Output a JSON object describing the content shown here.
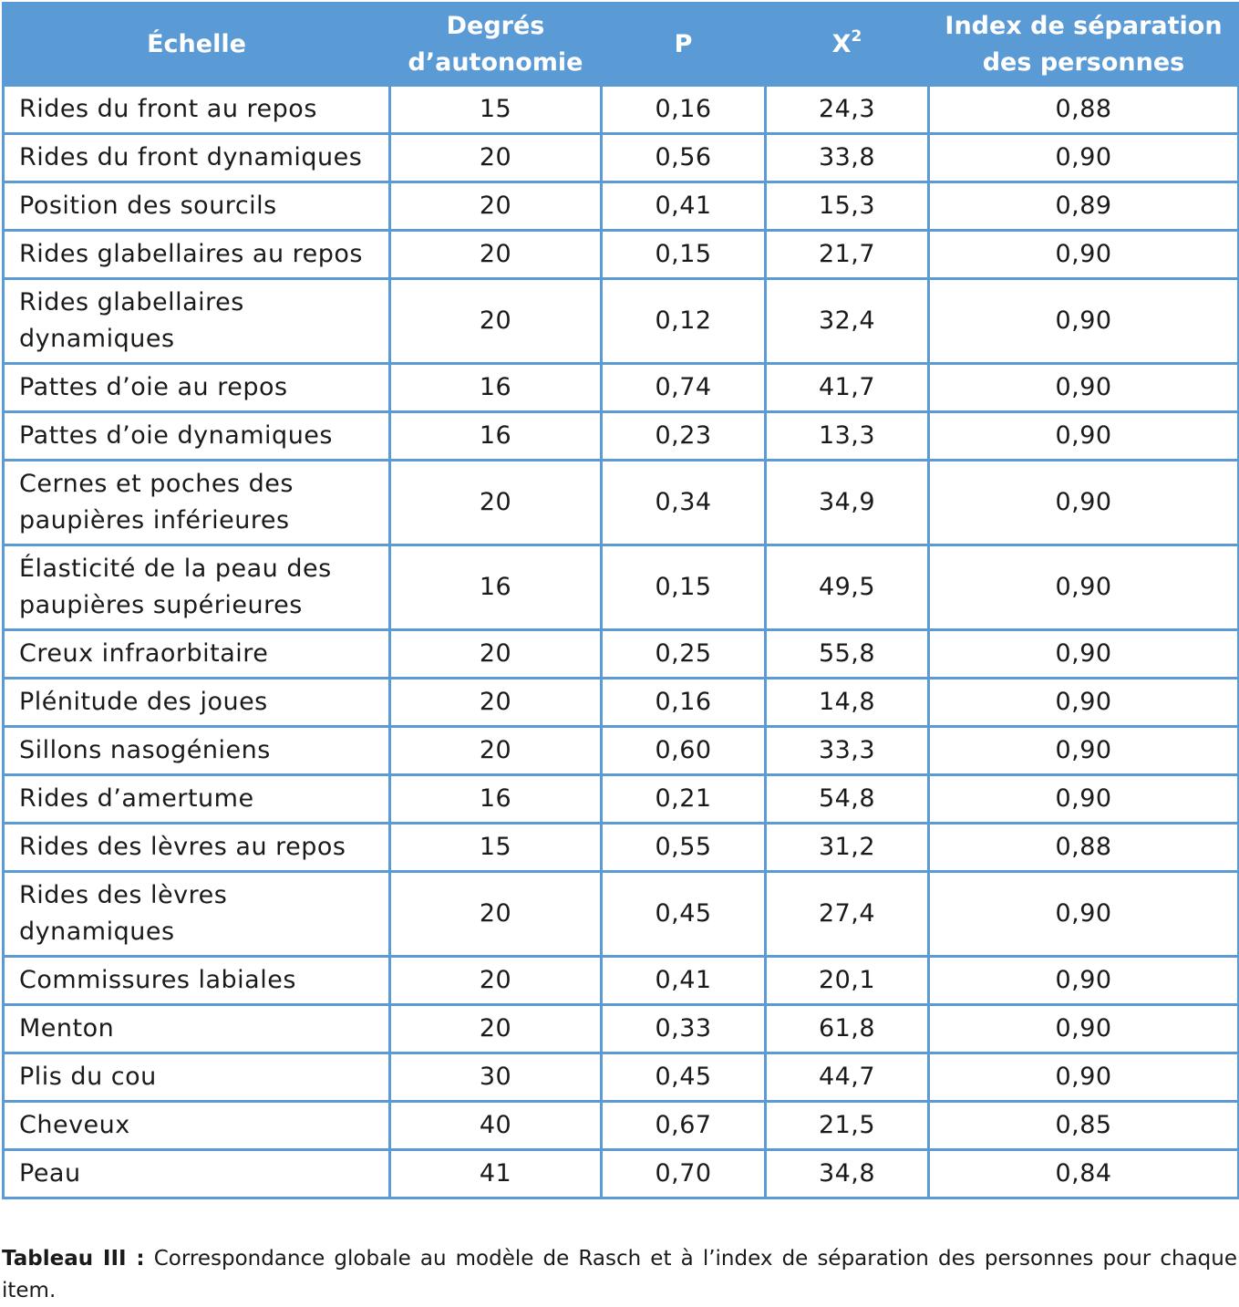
{
  "table": {
    "headers": {
      "scale": "Échelle",
      "degrees_line1": "Degrés",
      "degrees_line2": "d’autonomie",
      "p": "P",
      "x2_base": "X",
      "x2_sup": "2",
      "index_line1": "Index de séparation",
      "index_line2": "des personnes"
    },
    "rows": [
      {
        "scale": "Rides du front au repos",
        "df": "15",
        "p": "0,16",
        "x2": "24,3",
        "index": "0,88"
      },
      {
        "scale": "Rides du front dynamiques",
        "df": "20",
        "p": "0,56",
        "x2": "33,8",
        "index": "0,90"
      },
      {
        "scale": "Position des sourcils",
        "df": "20",
        "p": "0,41",
        "x2": "15,3",
        "index": "0,89"
      },
      {
        "scale": "Rides glabellaires au repos",
        "df": "20",
        "p": "0,15",
        "x2": "21,7",
        "index": "0,90"
      },
      {
        "scale": "Rides glabellaires dynamiques",
        "df": "20",
        "p": "0,12",
        "x2": "32,4",
        "index": "0,90"
      },
      {
        "scale": "Pattes d’oie au repos",
        "df": "16",
        "p": "0,74",
        "x2": "41,7",
        "index": "0,90"
      },
      {
        "scale": "Pattes d’oie dynamiques",
        "df": "16",
        "p": "0,23",
        "x2": "13,3",
        "index": "0,90"
      },
      {
        "scale": "Cernes et poches des paupières inférieures",
        "df": "20",
        "p": "0,34",
        "x2": "34,9",
        "index": "0,90"
      },
      {
        "scale": "Élasticité de la peau des paupières supérieures",
        "df": "16",
        "p": "0,15",
        "x2": "49,5",
        "index": "0,90"
      },
      {
        "scale": "Creux infraorbitaire",
        "df": "20",
        "p": "0,25",
        "x2": "55,8",
        "index": "0,90"
      },
      {
        "scale": "Plénitude des joues",
        "df": "20",
        "p": "0,16",
        "x2": "14,8",
        "index": "0,90"
      },
      {
        "scale": "Sillons nasogéniens",
        "df": "20",
        "p": "0,60",
        "x2": "33,3",
        "index": "0,90"
      },
      {
        "scale": "Rides d’amertume",
        "df": "16",
        "p": "0,21",
        "x2": "54,8",
        "index": "0,90"
      },
      {
        "scale": "Rides des lèvres au repos",
        "df": "15",
        "p": "0,55",
        "x2": "31,2",
        "index": "0,88"
      },
      {
        "scale": "Rides des lèvres dynamiques",
        "df": "20",
        "p": "0,45",
        "x2": "27,4",
        "index": "0,90"
      },
      {
        "scale": "Commissures labiales",
        "df": "20",
        "p": "0,41",
        "x2": "20,1",
        "index": "0,90"
      },
      {
        "scale": "Menton",
        "df": "20",
        "p": "0,33",
        "x2": "61,8",
        "index": "0,90"
      },
      {
        "scale": "Plis du cou",
        "df": "30",
        "p": "0,45",
        "x2": "44,7",
        "index": "0,90"
      },
      {
        "scale": "Cheveux",
        "df": "40",
        "p": "0,67",
        "x2": "21,5",
        "index": "0,85"
      },
      {
        "scale": "Peau",
        "df": "41",
        "p": "0,70",
        "x2": "34,8",
        "index": "0,84"
      }
    ]
  },
  "caption": {
    "label": "Tableau III :",
    "text": " Correspondance globale au modèle de Rasch et à l’index de séparation des personnes pour chaque item."
  },
  "colors": {
    "header_background": "#5b9bd5",
    "border": "#5b9bd5",
    "header_text": "#ffffff"
  }
}
